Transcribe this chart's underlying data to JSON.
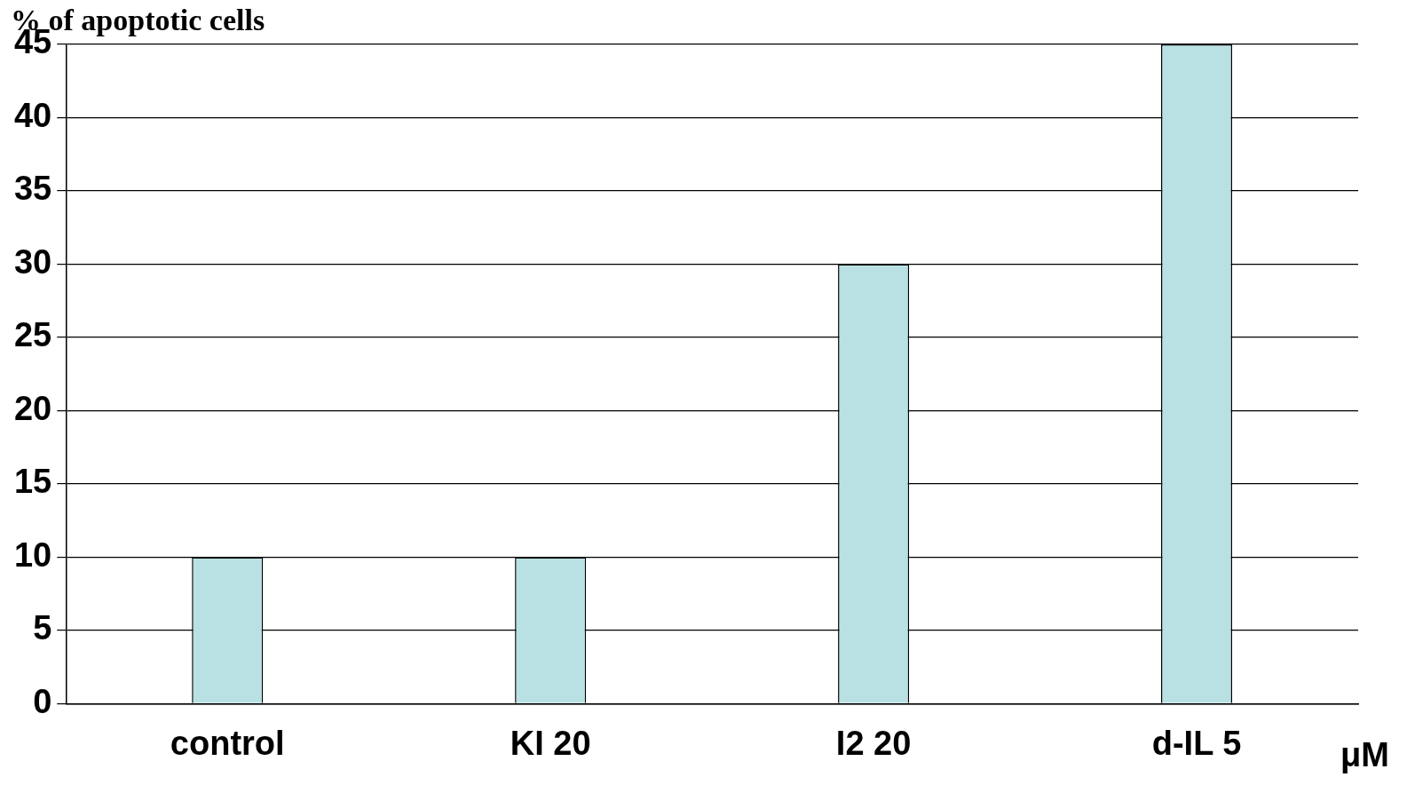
{
  "chart_data": {
    "type": "bar",
    "ylabel": "% of apoptotic cells",
    "xlabel": "μM",
    "categories": [
      "control",
      "KI 20",
      "I2 20",
      "d-IL 5"
    ],
    "values": [
      10,
      10,
      30,
      45
    ],
    "color": "#b9e0e2",
    "ylim": [
      0,
      45
    ],
    "yticks": [
      0,
      5,
      10,
      15,
      20,
      25,
      30,
      35,
      40,
      45
    ],
    "grid": "y",
    "legend": false
  }
}
